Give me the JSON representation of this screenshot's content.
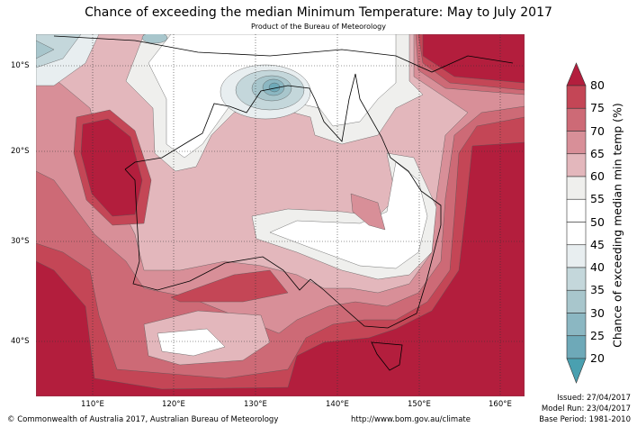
{
  "header": {
    "title": "Chance of exceeding the median Minimum Temperature: May to July 2017",
    "subtitle": "Product of the Bureau of Meteorology"
  },
  "map": {
    "lat_labels": [
      "10°S",
      "20°S",
      "30°S",
      "40°S"
    ],
    "lon_labels": [
      "110°E",
      "120°E",
      "130°E",
      "140°E",
      "150°E",
      "160°E"
    ]
  },
  "colorbar": {
    "title": "Chance of exceeding median min temp (%)",
    "levels": [
      "80",
      "75",
      "70",
      "65",
      "60",
      "55",
      "50",
      "45",
      "40",
      "35",
      "30",
      "25",
      "20"
    ],
    "colors": [
      "#c44656",
      "#cd6a76",
      "#d88f98",
      "#e3b7bc",
      "#efefed",
      "#ffffff",
      "#ffffff",
      "#e8eef0",
      "#c4d7db",
      "#a8c6cc",
      "#8bb7c2",
      "#6ea9b8"
    ],
    "over_color": "#b31e3d",
    "under_color": "#4aa0b0"
  },
  "footer": {
    "copyright": "© Commonwealth of Australia 2017, Australian Bureau of Meteorology",
    "url": "http://www.bom.gov.au/climate",
    "issued": "Issued: 27/04/2017",
    "model_run": "Model Run: 23/04/2017",
    "base_period": "Base Period: 1981-2010"
  }
}
